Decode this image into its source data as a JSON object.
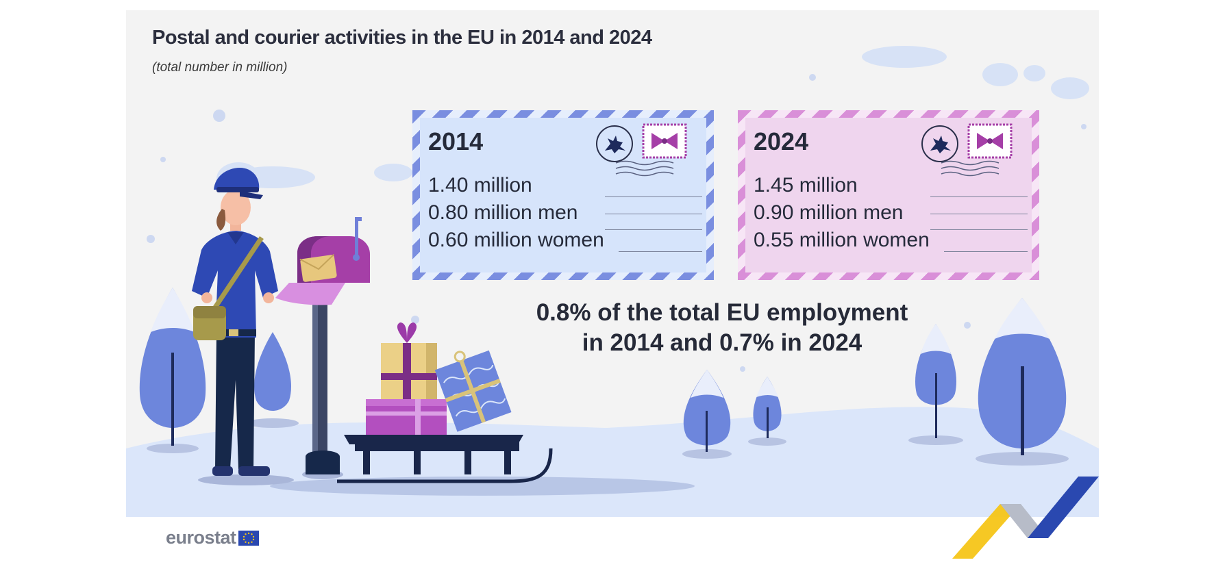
{
  "header": {
    "title": "Postal and courier activities in the EU in 2014 and 2024",
    "subtitle": "(total number in million)"
  },
  "cards": [
    {
      "year": "2014",
      "total": "1.40 million",
      "men": "0.80 million men",
      "women": "0.60 million women",
      "color": "#d6e4fb"
    },
    {
      "year": "2024",
      "total": "1.45 million",
      "men": "0.90 million men",
      "women": "0.55 million women",
      "color": "#efd5ee"
    }
  ],
  "headline": {
    "line1": "0.8% of the total EU employment",
    "line2": "in 2014 and 0.7% in 2024"
  },
  "branding": {
    "name": "eurostat",
    "flag_color": "#2a48b0",
    "accent_yellow": "#f5c518",
    "accent_blue": "#2a48b0"
  },
  "icons": [
    "postal-worker",
    "mailbox-icon",
    "envelope-icon",
    "gift-icon",
    "sled-icon",
    "tree-icon",
    "deer-stamp-icon",
    "bow-stamp-icon",
    "eu-flag-icon"
  ]
}
